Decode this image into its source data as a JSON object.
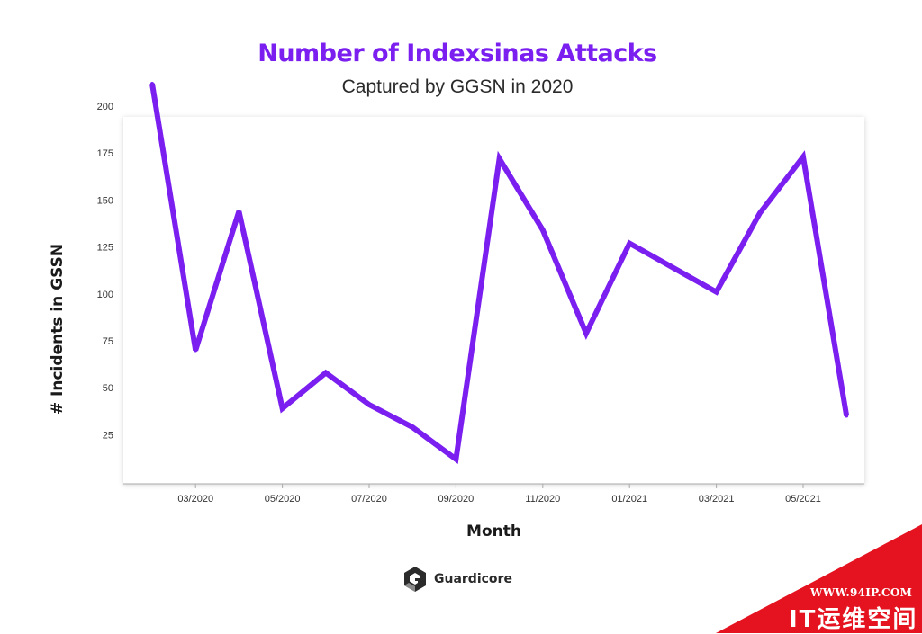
{
  "chart_data": {
    "type": "line",
    "title": "Number of Indexsinas Attacks",
    "subtitle": "Captured by GGSN in 2020",
    "xlabel": "Month",
    "ylabel": "# Incidents in GSSN",
    "x": [
      "02/2020",
      "03/2020",
      "04/2020",
      "05/2020",
      "06/2020",
      "07/2020",
      "08/2020",
      "09/2020",
      "10/2020",
      "11/2020",
      "12/2020",
      "01/2021",
      "02/2021",
      "03/2021",
      "04/2021",
      "05/2021",
      "06/2021"
    ],
    "series": [
      {
        "values": [
          212,
          70,
          144,
          39,
          58,
          41,
          29,
          12,
          172,
          134,
          79,
          127,
          114,
          101,
          143,
          173,
          35
        ]
      }
    ],
    "xtick_labels": [
      "03/2020",
      "05/2020",
      "07/2020",
      "09/2020",
      "11/2020",
      "01/2021",
      "03/2021",
      "05/2021"
    ],
    "ytick_values": [
      25,
      50,
      75,
      100,
      125,
      150,
      175,
      200
    ],
    "ylim": [
      7,
      212
    ],
    "line_color": "#7a1ff0",
    "title_color": "#7a1ff0",
    "grid": false,
    "legend": "none"
  },
  "brand": {
    "name": "Guardicore",
    "icon": "guardicore-logo-icon"
  },
  "watermark": {
    "url": "WWW.94IP.COM",
    "text": "IT运维空间",
    "color": "#e5121f"
  }
}
